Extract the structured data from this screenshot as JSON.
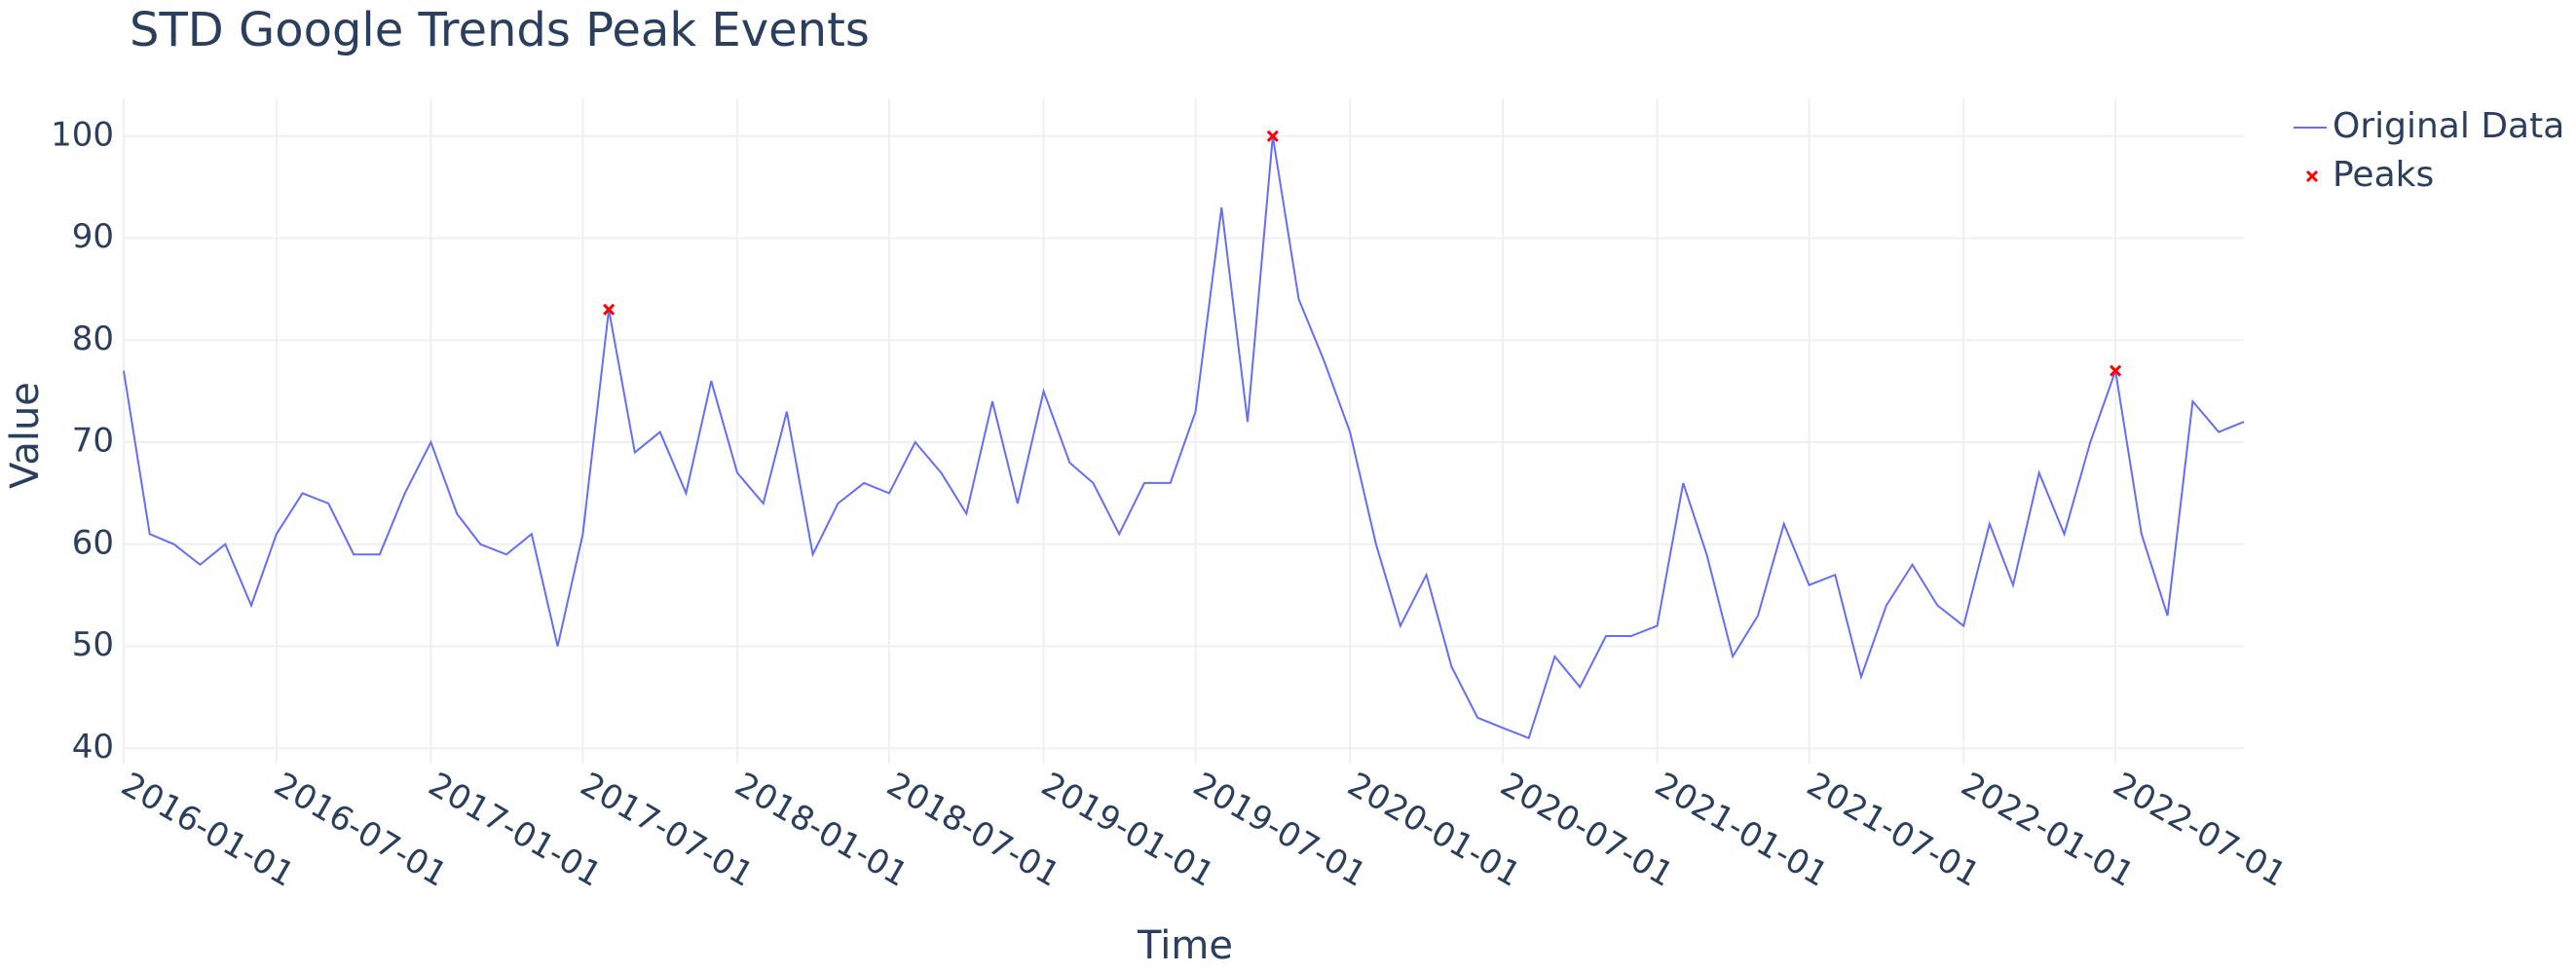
{
  "chart_data": {
    "type": "line",
    "title": "STD Google Trends Peak Events",
    "x_label": "Time",
    "y_label": "Value",
    "x": [
      "2016-01-01",
      "2016-02-01",
      "2016-03-01",
      "2016-04-01",
      "2016-05-01",
      "2016-06-01",
      "2016-07-01",
      "2016-08-01",
      "2016-09-01",
      "2016-10-01",
      "2016-11-01",
      "2016-12-01",
      "2017-01-01",
      "2017-02-01",
      "2017-03-01",
      "2017-04-01",
      "2017-05-01",
      "2017-06-01",
      "2017-07-01",
      "2017-08-01",
      "2017-09-01",
      "2017-10-01",
      "2017-11-01",
      "2017-12-01",
      "2018-01-01",
      "2018-02-01",
      "2018-03-01",
      "2018-04-01",
      "2018-05-01",
      "2018-06-01",
      "2018-07-01",
      "2018-08-01",
      "2018-09-01",
      "2018-10-01",
      "2018-11-01",
      "2018-12-01",
      "2019-01-01",
      "2019-02-01",
      "2019-03-01",
      "2019-04-01",
      "2019-05-01",
      "2019-06-01",
      "2019-07-01",
      "2019-08-01",
      "2019-09-01",
      "2019-10-01",
      "2019-11-01",
      "2019-12-01",
      "2020-01-01",
      "2020-02-01",
      "2020-03-01",
      "2020-04-01",
      "2020-05-01",
      "2020-06-01",
      "2020-07-01",
      "2020-08-01",
      "2020-09-01",
      "2020-10-01",
      "2020-11-01",
      "2020-12-01",
      "2021-01-01",
      "2021-02-01",
      "2021-03-01",
      "2021-04-01",
      "2021-05-01",
      "2021-06-01",
      "2021-07-01",
      "2021-08-01",
      "2021-09-01",
      "2021-10-01",
      "2021-11-01",
      "2021-12-01",
      "2022-01-01",
      "2022-02-01",
      "2022-03-01",
      "2022-04-01",
      "2022-05-01",
      "2022-06-01",
      "2022-07-01",
      "2022-08-01",
      "2022-09-01",
      "2022-10-01",
      "2022-11-01",
      "2022-12-01"
    ],
    "series": [
      {
        "name": "Original Data",
        "color": "#636efa",
        "mode": "line",
        "values": [
          77,
          61,
          60,
          58,
          60,
          54,
          61,
          65,
          64,
          59,
          59,
          65,
          70,
          63,
          60,
          59,
          61,
          50,
          61,
          83,
          69,
          71,
          65,
          76,
          67,
          64,
          73,
          59,
          64,
          66,
          65,
          70,
          67,
          63,
          74,
          64,
          75,
          68,
          66,
          61,
          66,
          66,
          73,
          93,
          72,
          100,
          84,
          78,
          71,
          60,
          52,
          57,
          48,
          43,
          42,
          41,
          49,
          46,
          51,
          51,
          52,
          66,
          59,
          49,
          53,
          62,
          56,
          57,
          47,
          54,
          58,
          54,
          52,
          62,
          56,
          67,
          61,
          70,
          77,
          61,
          53,
          74,
          71,
          72
        ]
      },
      {
        "name": "Peaks",
        "color": "#ff0000",
        "mode": "markers",
        "x": [
          "2017-08-01",
          "2019-10-01",
          "2022-07-01"
        ],
        "values": [
          83,
          100,
          77
        ]
      }
    ],
    "xlim": [
      "2016-01-01",
      "2022-12-01"
    ],
    "xticks": [
      "2016-01-01",
      "2016-07-01",
      "2017-01-01",
      "2017-07-01",
      "2018-01-01",
      "2018-07-01",
      "2019-01-01",
      "2019-07-01",
      "2020-01-01",
      "2020-07-01",
      "2021-01-01",
      "2021-07-01",
      "2022-01-01",
      "2022-07-01"
    ],
    "ylim": [
      38.5,
      103.7
    ],
    "yticks": [
      40,
      50,
      60,
      70,
      80,
      90,
      100
    ],
    "grid": true,
    "legend": "top-right"
  }
}
